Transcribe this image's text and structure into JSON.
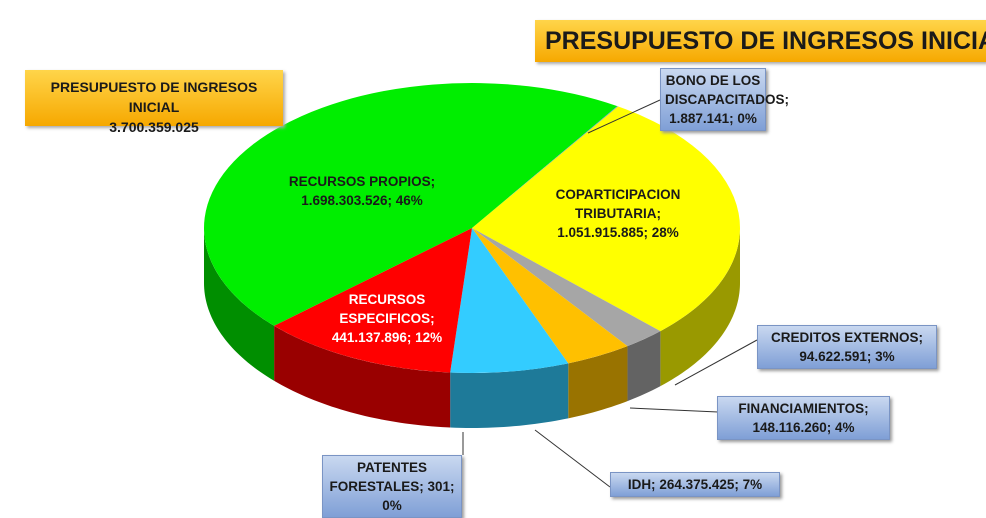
{
  "chart_data": {
    "type": "pie",
    "title": "PRESUPUESTO DE INGRESOS INICIAL",
    "total_label": "PRESUPUESTO DE INGRESOS INICIAL",
    "total": 3700359025,
    "total_value_label": "3.700.359.025",
    "categories": [
      "COPARTICIPACION TRIBUTARIA;",
      "CREDITOS EXTERNOS;",
      "FINANCIAMIENTOS;",
      "IDH;",
      "PATENTES FORESTALES;",
      "RECURSOS ESPECIFICOS;",
      "RECURSOS PROPIOS;",
      "BONO DE LOS DISCAPACITADOS;"
    ],
    "values": [
      1051915885,
      94622591,
      148116260,
      264375425,
      301,
      441137896,
      1698303526,
      1887141
    ],
    "value_labels": [
      "1.051.915.885; 28%",
      "94.622.591; 3%",
      "148.116.260; 4%",
      "264.375.425; 7%",
      "301; 0%",
      "441.137.896; 12%",
      "1.698.303.526; 46%",
      "1.887.141; 0%"
    ],
    "colors": [
      "#ffff00",
      "#a6a6a6",
      "#ffc000",
      "#33ccff",
      "#4472c4",
      "#ff0000",
      "#00ee00",
      "#5b9bd5"
    ]
  }
}
